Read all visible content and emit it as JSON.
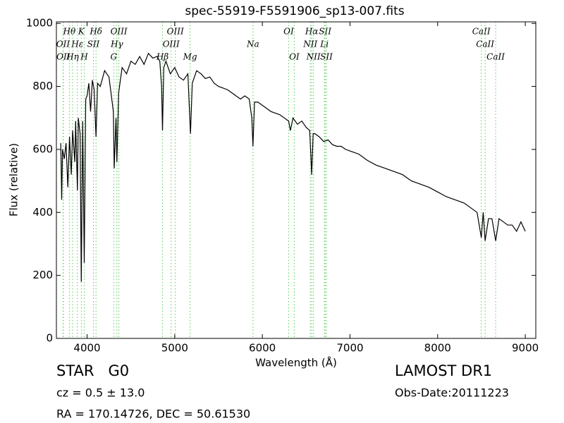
{
  "chart_data": {
    "type": "line",
    "title": "spec-55919-F5591906_sp13-007.fits",
    "x_label": "Wavelength (Å)",
    "y_label": "Flux (relative)",
    "xlim": [
      3650,
      9120
    ],
    "ylim": [
      0,
      1005
    ],
    "xticks": [
      4000,
      5000,
      6000,
      7000,
      8000,
      9000
    ],
    "yticks": [
      0,
      200,
      400,
      600,
      800,
      1000
    ],
    "color": "#000000",
    "line_color": "#55cc55",
    "annotation_rows": [
      [
        {
          "wavelength": 3798,
          "label": "Hθ"
        },
        {
          "wavelength": 3934,
          "label": "K"
        },
        {
          "wavelength": 4102,
          "label": "Hδ"
        },
        {
          "wavelength": 4363,
          "label": "OIII"
        },
        {
          "wavelength": 5007,
          "label": "OIII"
        },
        {
          "wavelength": 6300,
          "label": "OI"
        },
        {
          "wavelength": 6563,
          "label": "Hα"
        },
        {
          "wavelength": 6716,
          "label": "SII"
        },
        {
          "wavelength": 8498,
          "label": "CaII"
        }
      ],
      [
        {
          "wavelength": 3726,
          "label": "OII"
        },
        {
          "wavelength": 3889,
          "label": "Hε"
        },
        {
          "wavelength": 4072,
          "label": "SII"
        },
        {
          "wavelength": 4340,
          "label": "Hγ"
        },
        {
          "wavelength": 4959,
          "label": "OIII"
        },
        {
          "wavelength": 5893,
          "label": "Na"
        },
        {
          "wavelength": 6548,
          "label": "NII"
        },
        {
          "wavelength": 6708,
          "label": "Li"
        },
        {
          "wavelength": 8542,
          "label": "CaII"
        }
      ],
      [
        {
          "wavelength": 3729,
          "label": "OII"
        },
        {
          "wavelength": 3835,
          "label": "Hη"
        },
        {
          "wavelength": 3968,
          "label": "H"
        },
        {
          "wavelength": 4304,
          "label": "G"
        },
        {
          "wavelength": 4861,
          "label": "Hβ"
        },
        {
          "wavelength": 5175,
          "label": "Mg"
        },
        {
          "wavelength": 6364,
          "label": "OI"
        },
        {
          "wavelength": 6583,
          "label": "NII"
        },
        {
          "wavelength": 6731,
          "label": "SII"
        },
        {
          "wavelength": 8662,
          "label": "CaII"
        }
      ]
    ],
    "x": [
      3700,
      3710,
      3720,
      3740,
      3760,
      3780,
      3800,
      3820,
      3835,
      3860,
      3870,
      3890,
      3900,
      3920,
      3934,
      3950,
      3968,
      3985,
      4000,
      4020,
      4040,
      4060,
      4080,
      4102,
      4120,
      4150,
      4200,
      4250,
      4300,
      4310,
      4330,
      4340,
      4360,
      4400,
      4450,
      4500,
      4550,
      4600,
      4650,
      4700,
      4750,
      4800,
      4830,
      4850,
      4861,
      4875,
      4900,
      4950,
      5000,
      5050,
      5100,
      5150,
      5172,
      5180,
      5200,
      5250,
      5300,
      5350,
      5400,
      5450,
      5500,
      5550,
      5600,
      5650,
      5700,
      5750,
      5800,
      5850,
      5880,
      5893,
      5910,
      5950,
      6000,
      6050,
      6100,
      6150,
      6200,
      6250,
      6300,
      6320,
      6350,
      6400,
      6450,
      6500,
      6540,
      6563,
      6580,
      6600,
      6650,
      6700,
      6750,
      6800,
      6850,
      6900,
      6950,
      7000,
      7100,
      7200,
      7300,
      7400,
      7500,
      7600,
      7700,
      7800,
      7900,
      8000,
      8100,
      8200,
      8300,
      8400,
      8450,
      8498,
      8520,
      8542,
      8580,
      8620,
      8662,
      8700,
      8750,
      8800,
      8850,
      8900,
      8950,
      9000
    ],
    "values": [
      620,
      440,
      600,
      570,
      620,
      480,
      640,
      520,
      660,
      560,
      690,
      470,
      700,
      650,
      180,
      690,
      240,
      760,
      770,
      810,
      720,
      820,
      790,
      640,
      810,
      800,
      850,
      830,
      720,
      540,
      700,
      560,
      780,
      860,
      840,
      880,
      870,
      895,
      870,
      905,
      890,
      895,
      880,
      800,
      660,
      860,
      880,
      840,
      860,
      830,
      820,
      840,
      700,
      650,
      810,
      850,
      840,
      825,
      830,
      810,
      800,
      795,
      790,
      780,
      770,
      760,
      770,
      760,
      700,
      610,
      750,
      750,
      740,
      730,
      720,
      715,
      710,
      700,
      690,
      660,
      700,
      680,
      690,
      670,
      660,
      520,
      650,
      650,
      640,
      625,
      630,
      615,
      610,
      610,
      600,
      595,
      585,
      565,
      550,
      540,
      530,
      520,
      500,
      490,
      480,
      465,
      450,
      440,
      430,
      410,
      400,
      320,
      400,
      310,
      380,
      380,
      310,
      380,
      370,
      360,
      360,
      340,
      370,
      340
    ],
    "object_class": "STAR   G0",
    "redshift": "cz = 0.5 ± 13.0",
    "coordinates": "RA = 170.14726, DEC = 50.61530",
    "survey": "LAMOST DR1",
    "obs_date": "Obs-Date:20111223"
  }
}
